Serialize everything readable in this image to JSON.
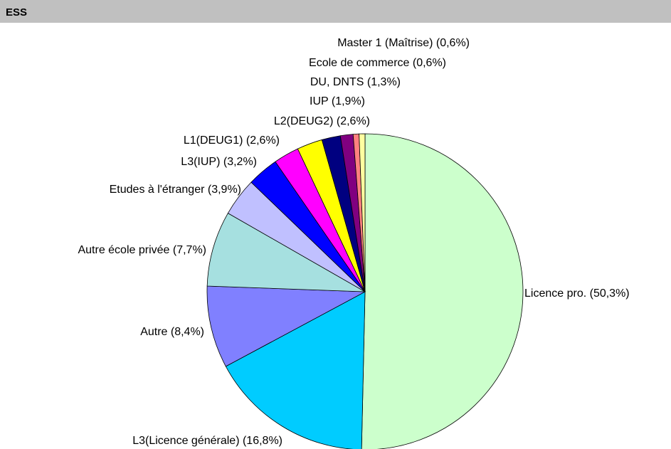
{
  "header": {
    "title": "ESS"
  },
  "chart_data": {
    "type": "pie",
    "categories": [
      "Licence pro. (50,3%)",
      "L3(Licence générale) (16,8%)",
      "Autre (8,4%)",
      "Autre école privée (7,7%)",
      "Etudes à l'étranger (3,9%)",
      "L3(IUP) (3,2%)",
      "L1(DEUG1) (2,6%)",
      "L2(DEUG2) (2,6%)",
      "IUP (1,9%)",
      "DU, DNTS (1,3%)",
      "Ecole de commerce (0,6%)",
      "Master 1 (Maîtrise) (0,6%)"
    ],
    "values": [
      50.3,
      16.8,
      8.4,
      7.7,
      3.9,
      3.2,
      2.6,
      2.6,
      1.9,
      1.3,
      0.6,
      0.6
    ],
    "colors": [
      "#ccffcc",
      "#00ccff",
      "#8080ff",
      "#a6e0e0",
      "#c0c0ff",
      "#0000ff",
      "#ff00ff",
      "#ffff00",
      "#000080",
      "#800080",
      "#ff8080",
      "#ffffa0"
    ]
  }
}
